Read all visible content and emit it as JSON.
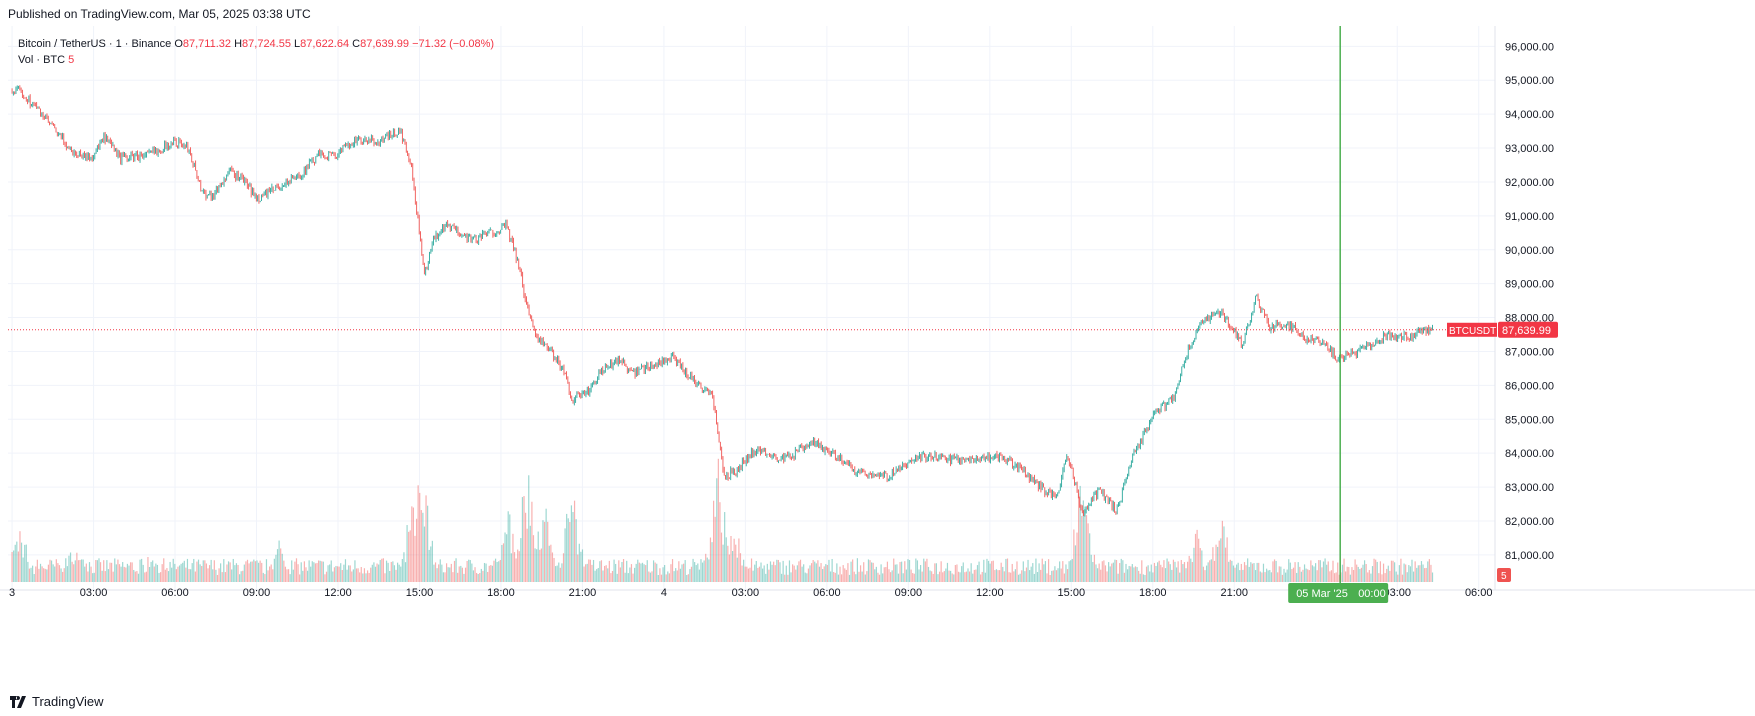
{
  "header": {
    "published": "Published on TradingView.com, Mar 05, 2025 03:38 UTC"
  },
  "legend": {
    "symbol": "Bitcoin / TetherUS · 1 · Binance",
    "o_label": "O",
    "o": "87,711.32",
    "h_label": "H",
    "h": "87,724.55",
    "l_label": "L",
    "l": "87,622.64",
    "c_label": "C",
    "c": "87,639.99",
    "change": "−71.32 (−0.08%)",
    "vol_label": "Vol · BTC",
    "vol_value": "5"
  },
  "footer": {
    "brand": "TradingView"
  },
  "colors": {
    "up": "#26a69a",
    "down": "#ef5350",
    "last": "#f23645",
    "cursor": "#4caf50"
  },
  "chart_data": {
    "type": "candlestick",
    "ylim": [
      80200,
      96600
    ],
    "y_ticks": [
      96000,
      95000,
      94000,
      93000,
      92000,
      91000,
      90000,
      89000,
      88000,
      87000,
      86000,
      85000,
      84000,
      83000,
      82000,
      81000
    ],
    "y_tick_labels": [
      "96,000.00",
      "95,000.00",
      "94,000.00",
      "93,000.00",
      "92,000.00",
      "91,000.00",
      "90,000.00",
      "89,000.00",
      "88,000.00",
      "87,000.00",
      "86,000.00",
      "85,000.00",
      "84,000.00",
      "83,000.00",
      "82,000.00",
      "81,000.00"
    ],
    "xlim_hours": [
      -0.15,
      54.6
    ],
    "x_ticks": [
      {
        "h": 0,
        "label": "3"
      },
      {
        "h": 3,
        "label": "03:00"
      },
      {
        "h": 6,
        "label": "06:00"
      },
      {
        "h": 9,
        "label": "09:00"
      },
      {
        "h": 12,
        "label": "12:00"
      },
      {
        "h": 15,
        "label": "15:00"
      },
      {
        "h": 18,
        "label": "18:00"
      },
      {
        "h": 21,
        "label": "21:00"
      },
      {
        "h": 24,
        "label": "4"
      },
      {
        "h": 27,
        "label": "03:00"
      },
      {
        "h": 30,
        "label": "06:00"
      },
      {
        "h": 33,
        "label": "09:00"
      },
      {
        "h": 36,
        "label": "12:00"
      },
      {
        "h": 39,
        "label": "15:00"
      },
      {
        "h": 42,
        "label": "18:00"
      },
      {
        "h": 45,
        "label": "21:00"
      },
      {
        "h": 51,
        "label": "03:00"
      },
      {
        "h": 54,
        "label": "06:00"
      }
    ],
    "price_path": [
      [
        0.0,
        94700
      ],
      [
        0.4,
        94600
      ],
      [
        1.0,
        94100
      ],
      [
        1.5,
        93600
      ],
      [
        2.2,
        92900
      ],
      [
        2.9,
        92700
      ],
      [
        3.4,
        93300
      ],
      [
        4.0,
        92700
      ],
      [
        5.0,
        92800
      ],
      [
        6.0,
        93200
      ],
      [
        6.5,
        93000
      ],
      [
        7.0,
        91700
      ],
      [
        7.4,
        91600
      ],
      [
        8.0,
        92300
      ],
      [
        8.5,
        92100
      ],
      [
        9.0,
        91500
      ],
      [
        9.7,
        91800
      ],
      [
        10.6,
        92200
      ],
      [
        11.3,
        92800
      ],
      [
        12.0,
        92800
      ],
      [
        12.5,
        93200
      ],
      [
        13.5,
        93200
      ],
      [
        14.3,
        93500
      ],
      [
        14.7,
        92400
      ],
      [
        15.0,
        90500
      ],
      [
        15.2,
        89300
      ],
      [
        15.5,
        90300
      ],
      [
        16.0,
        90700
      ],
      [
        17.0,
        90300
      ],
      [
        18.2,
        90700
      ],
      [
        18.6,
        89700
      ],
      [
        19.0,
        88200
      ],
      [
        19.3,
        87500
      ],
      [
        19.8,
        87000
      ],
      [
        20.3,
        86500
      ],
      [
        20.6,
        85600
      ],
      [
        21.2,
        85800
      ],
      [
        21.7,
        86400
      ],
      [
        22.4,
        86800
      ],
      [
        22.8,
        86300
      ],
      [
        23.5,
        86600
      ],
      [
        24.3,
        86800
      ],
      [
        25.3,
        86000
      ],
      [
        25.8,
        85700
      ],
      [
        26.0,
        84500
      ],
      [
        26.2,
        83300
      ],
      [
        26.7,
        83500
      ],
      [
        27.2,
        84000
      ],
      [
        27.6,
        84100
      ],
      [
        28.4,
        83800
      ],
      [
        29.5,
        84300
      ],
      [
        30.2,
        84000
      ],
      [
        31.0,
        83500
      ],
      [
        32.2,
        83300
      ],
      [
        33.5,
        83900
      ],
      [
        35.0,
        83800
      ],
      [
        36.4,
        83900
      ],
      [
        37.2,
        83500
      ],
      [
        38.0,
        82900
      ],
      [
        38.5,
        82700
      ],
      [
        38.8,
        83800
      ],
      [
        39.0,
        83600
      ],
      [
        39.4,
        82200
      ],
      [
        40.0,
        82900
      ],
      [
        40.7,
        82300
      ],
      [
        41.2,
        83800
      ],
      [
        42.0,
        85100
      ],
      [
        42.8,
        85700
      ],
      [
        43.2,
        86800
      ],
      [
        43.7,
        87800
      ],
      [
        44.5,
        88200
      ],
      [
        45.3,
        87200
      ],
      [
        45.8,
        88600
      ],
      [
        46.3,
        87700
      ],
      [
        47.0,
        87800
      ],
      [
        47.6,
        87400
      ],
      [
        48.3,
        87200
      ],
      [
        48.8,
        86800
      ],
      [
        49.6,
        87000
      ],
      [
        50.3,
        87300
      ],
      [
        50.7,
        87500
      ],
      [
        51.4,
        87400
      ],
      [
        51.8,
        87600
      ],
      [
        52.3,
        87640
      ]
    ],
    "volume_spikes": [
      [
        0.3,
        0.45
      ],
      [
        2.3,
        0.3
      ],
      [
        5.1,
        0.22
      ],
      [
        9.8,
        0.32
      ],
      [
        14.8,
        0.72
      ],
      [
        15.1,
        0.95
      ],
      [
        18.3,
        0.55
      ],
      [
        19.0,
        1.0
      ],
      [
        19.6,
        0.6
      ],
      [
        20.6,
        0.78
      ],
      [
        26.0,
        0.9
      ],
      [
        26.6,
        0.45
      ],
      [
        39.4,
        0.82
      ],
      [
        43.6,
        0.42
      ],
      [
        44.5,
        0.55
      ]
    ],
    "volume_axis_label": "5",
    "last_price": 87639.99,
    "last_price_label": "87,639.99",
    "last_price_tag": "BTCUSDT",
    "crosshair": {
      "h": 48.9,
      "date_label": "05 Mar '25",
      "time_label": "00:00"
    }
  }
}
